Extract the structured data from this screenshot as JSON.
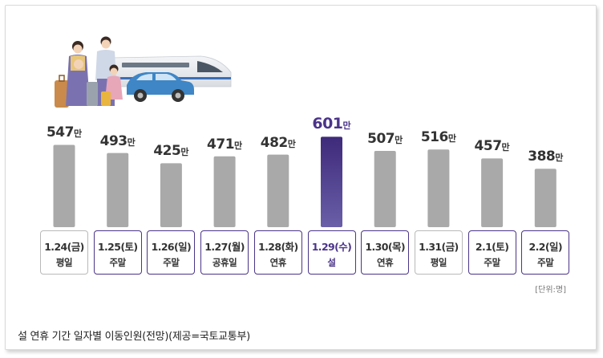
{
  "chart_data": {
    "type": "bar",
    "title": "설 연휴 기간 일자별 이동인원(전망)(제공=국토교통부)",
    "unit_note": "[단위:명]",
    "value_unit": "만",
    "highlight_color": "#4b3489",
    "bar_color": "#a9a9a9",
    "ylim": [
      0,
      650
    ],
    "categories": [
      {
        "date": "1.24(금)",
        "type": "평일",
        "value": 547,
        "weekend": false,
        "highlight": false
      },
      {
        "date": "1.25(토)",
        "type": "주말",
        "value": 493,
        "weekend": true,
        "highlight": false
      },
      {
        "date": "1.26(일)",
        "type": "주말",
        "value": 425,
        "weekend": true,
        "highlight": false
      },
      {
        "date": "1.27(월)",
        "type": "공휴일",
        "value": 471,
        "weekend": true,
        "highlight": false
      },
      {
        "date": "1.28(화)",
        "type": "연휴",
        "value": 482,
        "weekend": true,
        "highlight": false
      },
      {
        "date": "1.29(수)",
        "type": "설",
        "value": 601,
        "weekend": true,
        "highlight": true
      },
      {
        "date": "1.30(목)",
        "type": "연휴",
        "value": 507,
        "weekend": true,
        "highlight": false
      },
      {
        "date": "1.31(금)",
        "type": "평일",
        "value": 516,
        "weekend": false,
        "highlight": false
      },
      {
        "date": "2.1(토)",
        "type": "주말",
        "value": 457,
        "weekend": true,
        "highlight": false
      },
      {
        "date": "2.2(일)",
        "type": "주말",
        "value": 388,
        "weekend": true,
        "highlight": false
      }
    ]
  },
  "illustration": {
    "icon": "family-travel-icon",
    "colors": {
      "train": "#e9ecef",
      "car": "#3e86c6",
      "luggage": "#c98a4b",
      "hanbok": "#7a72b0"
    }
  }
}
